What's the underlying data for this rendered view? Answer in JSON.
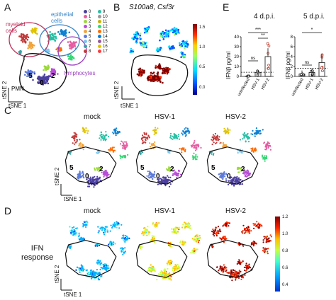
{
  "panels": {
    "A": {
      "letter": "A",
      "cluster_labels": {
        "myeloid": "myeloid cells",
        "epithelial": "epithelial cells",
        "lymphocytes": "lymphocytes",
        "pmn": "PMN"
      },
      "legend": [
        {
          "id": "0",
          "color": "#4b3f9f"
        },
        {
          "id": "1",
          "color": "#e65ca2"
        },
        {
          "id": "2",
          "color": "#9cd83a"
        },
        {
          "id": "3",
          "color": "#b84dd6"
        },
        {
          "id": "4",
          "color": "#f2a43a"
        },
        {
          "id": "5",
          "color": "#5d7ad8"
        },
        {
          "id": "6",
          "color": "#7cc8f0"
        },
        {
          "id": "7",
          "color": "#3aa1a1"
        },
        {
          "id": "8",
          "color": "#c23a3a"
        },
        {
          "id": "9",
          "color": "#27c0a5"
        },
        {
          "id": "10",
          "color": "#999999"
        },
        {
          "id": "11",
          "color": "#c9b200"
        },
        {
          "id": "12",
          "color": "#36d675"
        },
        {
          "id": "13",
          "color": "#ff6b00"
        },
        {
          "id": "14",
          "color": "#0b7fd1"
        },
        {
          "id": "15",
          "color": "#98589e"
        },
        {
          "id": "16",
          "color": "#e0c200"
        },
        {
          "id": "17",
          "color": "#ff3c3c"
        }
      ],
      "inner_labels": [
        "5",
        "0",
        "2"
      ],
      "xlabel": "tSNE 1",
      "ylabel": "tSNE 2"
    },
    "B": {
      "letter": "B",
      "title": "S100a8, Csf3r",
      "colorbar_ticks": [
        "1.5",
        "1.0",
        "0.5",
        "0.0"
      ],
      "xlabel": "tSNE 1",
      "ylabel": "tSNE 2"
    },
    "C": {
      "letter": "C",
      "titles": [
        "mock",
        "HSV-1",
        "HSV-2"
      ],
      "inner_labels": [
        "5",
        "0",
        "2"
      ],
      "xlabel": "tSNE 1",
      "ylabel": "tSNE 2"
    },
    "D": {
      "letter": "D",
      "titles": [
        "mock",
        "HSV-1",
        "HSV-2"
      ],
      "side_label_1": "IFN",
      "side_label_2": "response",
      "colorbar_ticks": [
        "1.2",
        "1.0",
        "0.8",
        "0.6",
        "0.4"
      ],
      "xlabel": "tSNE 1",
      "ylabel": "tSNE 2"
    },
    "E": {
      "letter": "E",
      "ylabel": "IFNβ pg/ml",
      "charts": [
        {
          "title": "4 d.p.i.",
          "categories": [
            "uninfected",
            "HSV-1",
            "HSV-2"
          ],
          "values": [
            0.3,
            4,
            20
          ],
          "ylim": [
            0,
            40
          ],
          "yticks": [
            "0",
            "10",
            "20",
            "30",
            "40"
          ],
          "sig": [
            "ns",
            "***",
            "**"
          ]
        },
        {
          "title": "5 d.p.i.",
          "categories": [
            "uninfected",
            "HSV-1",
            "HSV-2"
          ],
          "values": [
            0.5,
            0.8,
            2.8
          ],
          "ylim": [
            0,
            8
          ],
          "yticks": [
            "0",
            "2",
            "4",
            "6",
            "8"
          ],
          "sig": [
            "ns",
            "*"
          ]
        }
      ]
    }
  }
}
